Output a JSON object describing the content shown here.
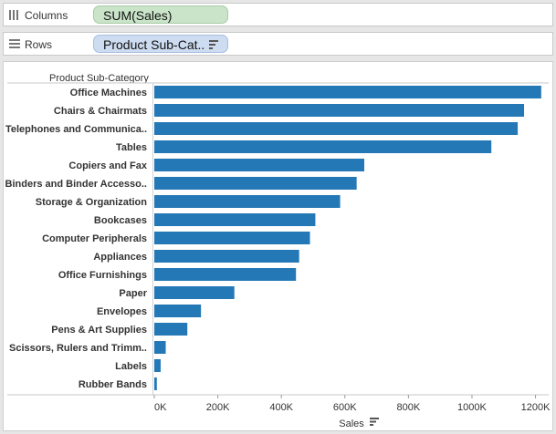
{
  "columns_shelf": {
    "label": "Columns",
    "pill": "SUM(Sales)"
  },
  "rows_shelf": {
    "label": "Rows",
    "pill": "Product Sub-Cat.."
  },
  "chart_data": {
    "type": "bar",
    "orientation": "horizontal",
    "row_header": "Product Sub-Category",
    "categories": [
      "Office Machines",
      "Chairs & Chairmats",
      "Telephones and Communica..",
      "Tables",
      "Copiers and Fax",
      "Binders and Binder Accesso..",
      "Storage & Organization",
      "Bookcases",
      "Computer Peripherals",
      "Appliances",
      "Office Furnishings",
      "Paper",
      "Envelopes",
      "Pens & Art Supplies",
      "Scissors, Rulers and Trimm..",
      "Labels",
      "Rubber Bands"
    ],
    "values": [
      1218000,
      1164000,
      1144000,
      1061000,
      661000,
      637000,
      585000,
      507000,
      490000,
      456000,
      446000,
      252000,
      147000,
      104000,
      36000,
      20000,
      8000
    ],
    "xlabel": "Sales",
    "xlim": [
      0,
      1230000
    ],
    "x_ticks": [
      0,
      200000,
      400000,
      600000,
      800000,
      1000000,
      1200000
    ],
    "x_tick_labels": [
      "0K",
      "200K",
      "400K",
      "600K",
      "800K",
      "1000K",
      "1200K"
    ],
    "bar_color": "#2478b6",
    "grid": false
  }
}
